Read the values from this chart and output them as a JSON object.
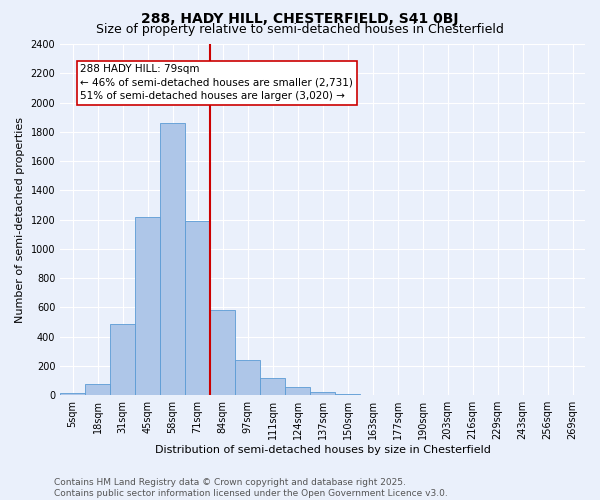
{
  "title": "288, HADY HILL, CHESTERFIELD, S41 0BJ",
  "subtitle": "Size of property relative to semi-detached houses in Chesterfield",
  "xlabel": "Distribution of semi-detached houses by size in Chesterfield",
  "ylabel": "Number of semi-detached properties",
  "bin_labels": [
    "5sqm",
    "18sqm",
    "31sqm",
    "45sqm",
    "58sqm",
    "71sqm",
    "84sqm",
    "97sqm",
    "111sqm",
    "124sqm",
    "137sqm",
    "150sqm",
    "163sqm",
    "177sqm",
    "190sqm",
    "203sqm",
    "216sqm",
    "229sqm",
    "243sqm",
    "256sqm",
    "269sqm"
  ],
  "bar_values": [
    15,
    80,
    490,
    1220,
    1860,
    1190,
    580,
    240,
    120,
    55,
    25,
    10,
    0,
    0,
    0,
    0,
    0,
    0,
    0,
    0,
    0
  ],
  "bar_color": "#aec6e8",
  "bar_edge_color": "#5b9bd5",
  "red_line_x": 5.5,
  "annotation_text": "288 HADY HILL: 79sqm\n← 46% of semi-detached houses are smaller (2,731)\n51% of semi-detached houses are larger (3,020) →",
  "annotation_box_color": "#ffffff",
  "annotation_box_edge": "#cc0000",
  "red_line_color": "#cc0000",
  "ylim": [
    0,
    2400
  ],
  "yticks": [
    0,
    200,
    400,
    600,
    800,
    1000,
    1200,
    1400,
    1600,
    1800,
    2000,
    2200,
    2400
  ],
  "footnote": "Contains HM Land Registry data © Crown copyright and database right 2025.\nContains public sector information licensed under the Open Government Licence v3.0.",
  "bg_color": "#eaf0fb",
  "grid_color": "#ffffff",
  "title_fontsize": 10,
  "subtitle_fontsize": 9,
  "label_fontsize": 8,
  "tick_fontsize": 7,
  "footnote_fontsize": 6.5
}
